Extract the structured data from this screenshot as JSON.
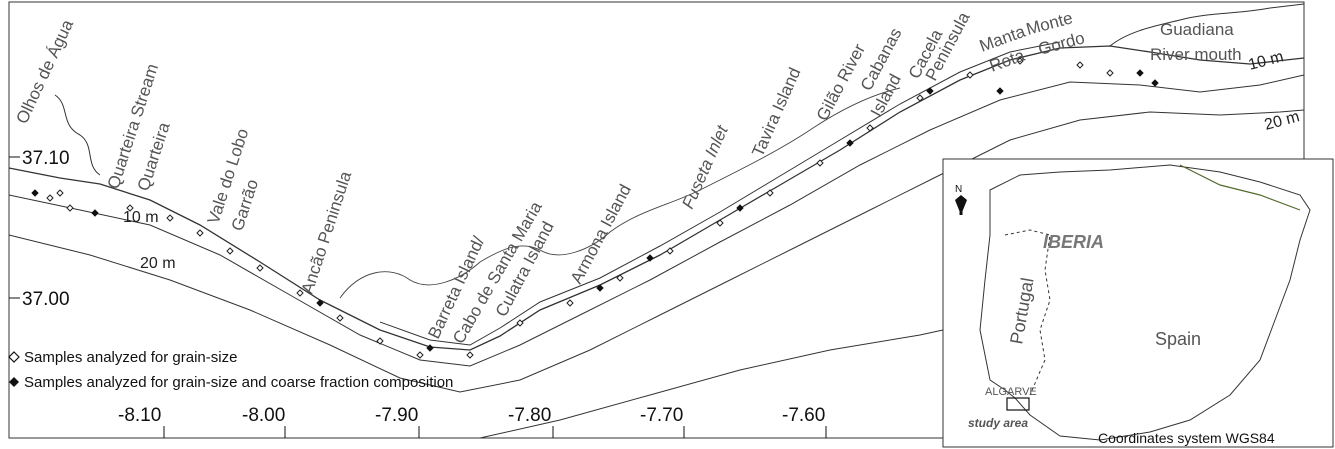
{
  "map": {
    "place_labels": [
      "Olhos de Água",
      "Quarteira Stream",
      "Quarteira",
      "Vale do Lobo",
      "Garrão",
      "Ancão Peninsula",
      "Barreta Island/",
      "Cabo de Santa Maria",
      "Culatra Island",
      "Armona Island",
      "Fuseta Inlet",
      "Tavira Island",
      "Gilão River",
      "Cabanas",
      "Island",
      "Cacela",
      "Peninsula",
      "Manta",
      "Rota",
      "Monte",
      "Gordo",
      "Guadiana",
      "River mouth"
    ],
    "lat_ticks": [
      "37.10",
      "37.00"
    ],
    "lon_ticks": [
      "-8.10",
      "-8.00",
      "-7.90",
      "-7.80",
      "-7.70",
      "-7.60"
    ],
    "isobaths": [
      "10 m",
      "20 m",
      "10 m",
      "20 m"
    ],
    "legend": {
      "open_diamond_label": "Samples analyzed for grain-size",
      "filled_diamond_label": "Samples analyzed for grain-size and coarse fraction composition"
    }
  },
  "inset": {
    "north_label": "N",
    "region_label": "IBERIA",
    "country_labels": [
      "Portugal",
      "Spain"
    ],
    "area_label": "ALGARVE",
    "study_label": "study area",
    "coords_note": "Coordinates system WGS84"
  },
  "colors": {
    "ink": "#222222",
    "label_gray": "#555555",
    "background": "#ffffff"
  }
}
